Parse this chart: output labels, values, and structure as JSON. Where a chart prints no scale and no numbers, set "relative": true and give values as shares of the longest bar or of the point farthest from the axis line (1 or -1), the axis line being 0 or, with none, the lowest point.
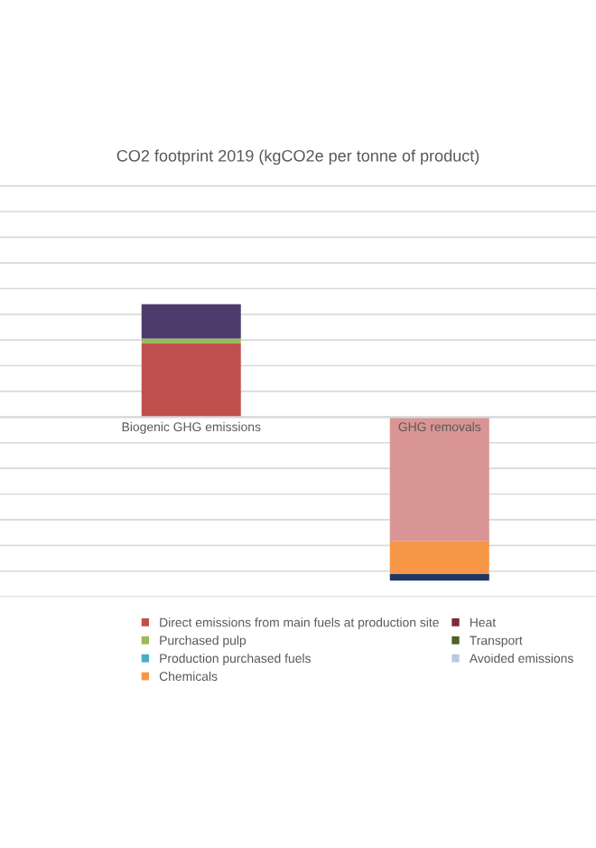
{
  "chart_data": {
    "type": "bar",
    "title": "CO2 footprint 2019 (kgCO2e per tonne of product)",
    "relative": true,
    "stacked": true,
    "grid": "y",
    "legend": "bottom",
    "categories": [
      "Biogenic GHG emissions",
      "GHG removals"
    ],
    "series": [
      {
        "name": "Direct emissions from main fuels at production site",
        "color": "#c0504d",
        "values": [
          0.45,
          null
        ]
      },
      {
        "name": "Purchased pulp",
        "color": "#9bbb59",
        "values": [
          0.03,
          null
        ]
      },
      {
        "name": "Production purchased fuels",
        "color": "#4bacc6",
        "values": [
          null,
          null
        ]
      },
      {
        "name": "Chemicals",
        "color": "#f79646",
        "values": [
          null,
          null
        ]
      },
      {
        "name": "Heat",
        "color": "#7b2c3a",
        "values": [
          null,
          null
        ]
      },
      {
        "name": "Transport",
        "color": "#4f6228",
        "values": [
          null,
          null
        ]
      },
      {
        "name": "Avoided emissions",
        "color": "#b7c9e2",
        "values": [
          null,
          null
        ]
      },
      {
        "color": "#4e3b6b",
        "values": [
          0.21,
          null
        ]
      },
      {
        "color": "#d99594",
        "values": [
          null,
          -0.76
        ]
      },
      {
        "color": "#f79646",
        "values": [
          null,
          -0.2
        ]
      },
      {
        "color": "#1f3864",
        "values": [
          null,
          -0.04
        ]
      }
    ]
  }
}
